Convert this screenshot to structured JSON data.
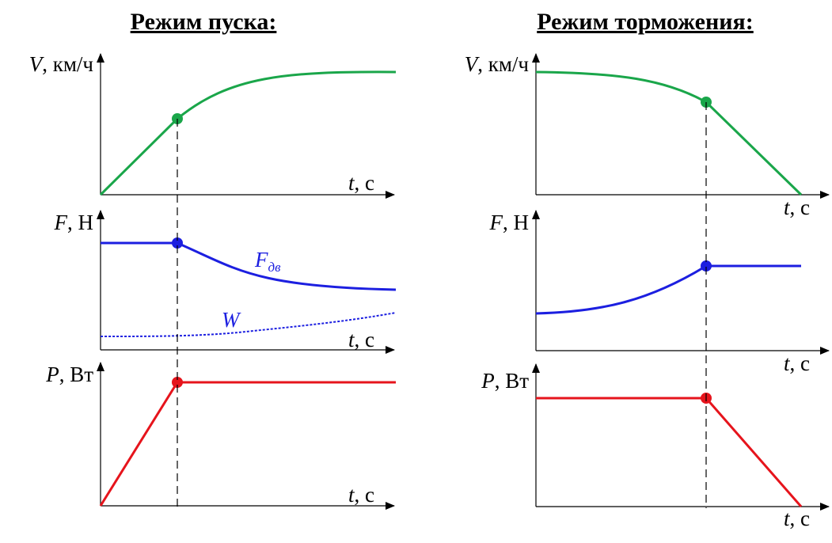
{
  "colors": {
    "speed": "#1aa64a",
    "force": "#1c1fe0",
    "power": "#e6141c",
    "axis": "#000000"
  },
  "left": {
    "title": "Режим пуска:",
    "v_label": {
      "sym": "V",
      "unit": ", км/ч"
    },
    "f_label": {
      "sym": "F",
      "unit": ", Н"
    },
    "p_label": {
      "sym": "P",
      "unit": ", Вт"
    },
    "t_label": {
      "sym": "t",
      "unit": ", с"
    },
    "f_series_label": "F",
    "f_series_sub": "дв",
    "w_series_label": "W"
  },
  "right": {
    "title": "Режим торможения:",
    "v_label": {
      "sym": "V",
      "unit": ", км/ч"
    },
    "f_label": {
      "sym": "F",
      "unit": ", Н"
    },
    "p_label": {
      "sym": "P",
      "unit": ", Вт"
    },
    "t_label": {
      "sym": "t",
      "unit": ", с"
    }
  }
}
